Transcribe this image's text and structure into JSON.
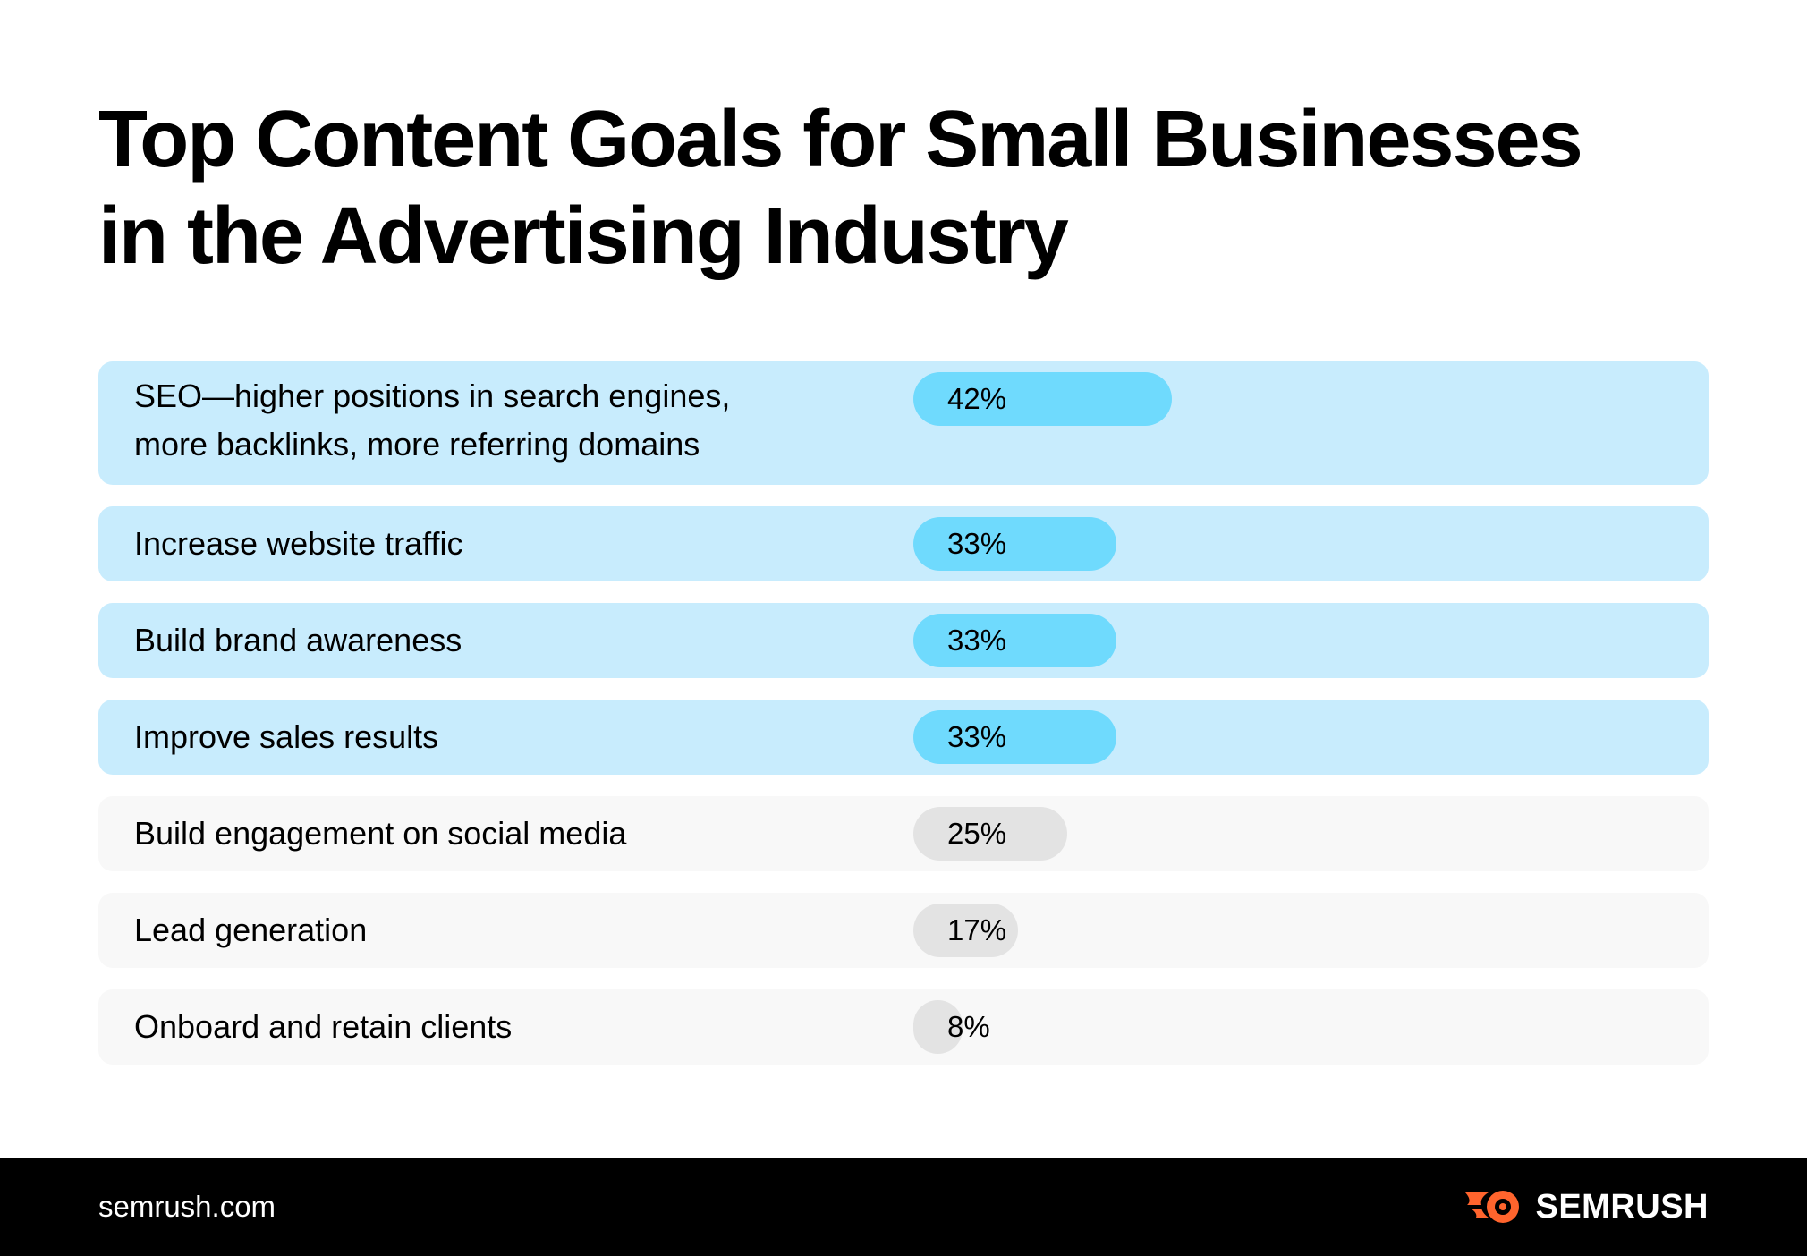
{
  "chart_data": {
    "type": "bar",
    "orientation": "horizontal",
    "title_lines": [
      "Top Content Goals for Small Businesses",
      "in the Advertising Industry"
    ],
    "xlim": [
      0,
      100
    ],
    "categories": [
      {
        "label_lines": [
          "SEO—higher positions in search engines,",
          "more backlinks, more referring domains"
        ],
        "value": 42,
        "value_label": "42%",
        "highlight": true
      },
      {
        "label_lines": [
          "Increase website traffic"
        ],
        "value": 33,
        "value_label": "33%",
        "highlight": true
      },
      {
        "label_lines": [
          "Build brand awareness"
        ],
        "value": 33,
        "value_label": "33%",
        "highlight": true
      },
      {
        "label_lines": [
          "Improve sales results"
        ],
        "value": 33,
        "value_label": "33%",
        "highlight": true
      },
      {
        "label_lines": [
          "Build engagement on social media"
        ],
        "value": 25,
        "value_label": "25%",
        "highlight": false
      },
      {
        "label_lines": [
          "Lead generation"
        ],
        "value": 17,
        "value_label": "17%",
        "highlight": false
      },
      {
        "label_lines": [
          "Onboard and retain clients"
        ],
        "value": 8,
        "value_label": "8%",
        "highlight": false
      }
    ],
    "colors": {
      "highlight_row": "#c8ecfd",
      "highlight_bar": "#6fdafd",
      "normal_row": "#f8f8f8",
      "normal_bar": "#e3e3e3"
    }
  },
  "footer": {
    "url": "semrush.com",
    "brand": "SEMRUSH",
    "brand_icon": "semrush-flame-icon",
    "brand_color": "#ff642d"
  }
}
